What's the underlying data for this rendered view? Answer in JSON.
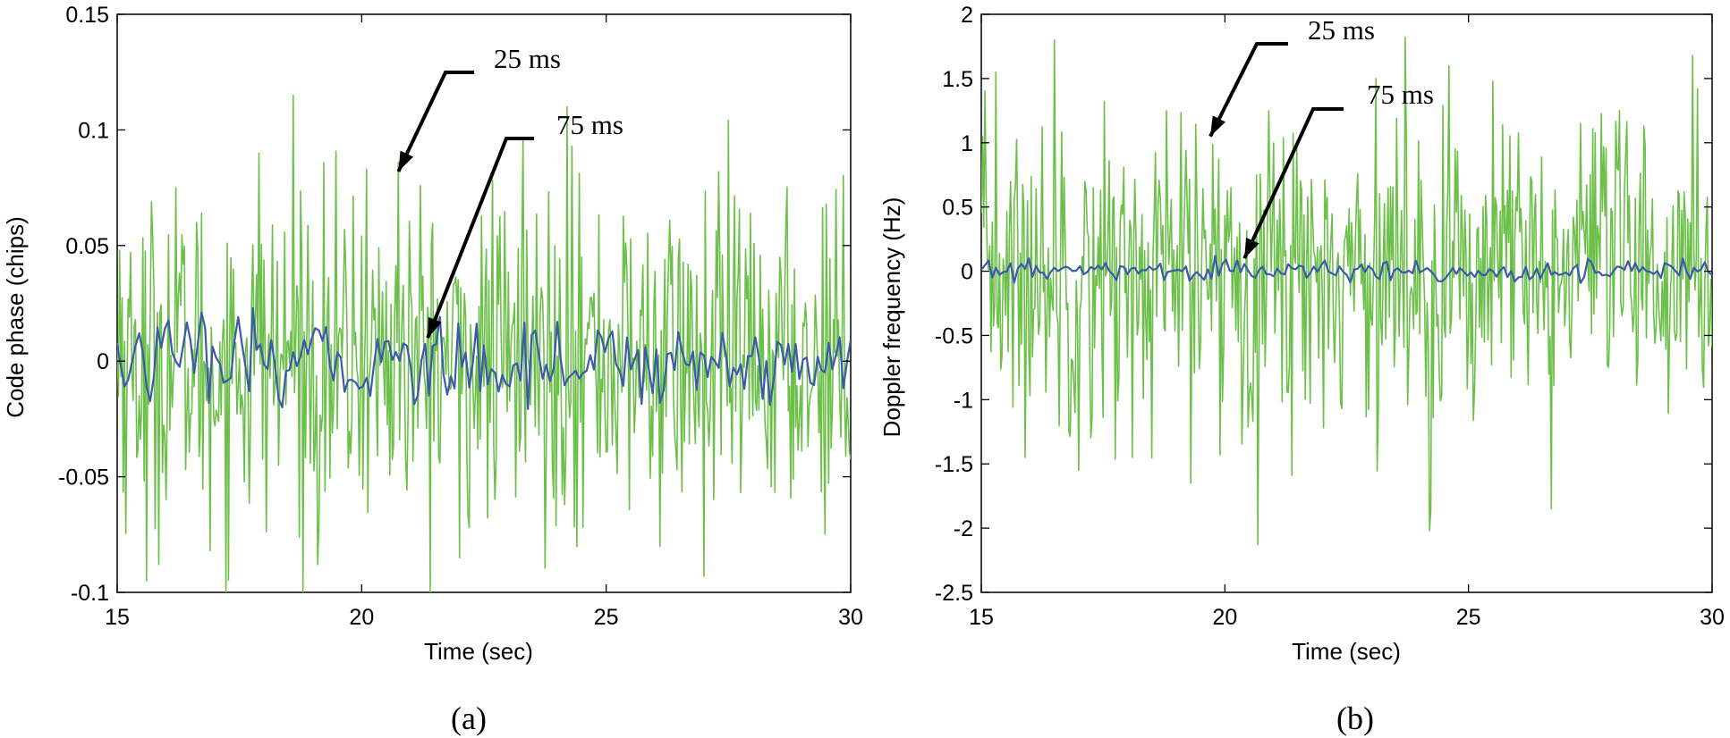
{
  "chart_data": [
    {
      "type": "line",
      "panel_label": "(a)",
      "xlabel": "Time (sec)",
      "ylabel": "Code phase (chips)",
      "xlim": [
        15,
        30
      ],
      "ylim": [
        -0.1,
        0.15
      ],
      "xticks": [
        "15",
        "20",
        "25",
        "30"
      ],
      "xtick_values": [
        15,
        20,
        25,
        30
      ],
      "yticks": [
        "-0.1",
        "-0.05",
        "0",
        "0.05",
        "0.1",
        "0.15"
      ],
      "ytick_values": [
        -0.1,
        -0.05,
        0,
        0.05,
        0.1,
        0.15
      ],
      "series": [
        {
          "name": "25 ms",
          "color": "#6cc04a",
          "dt": 0.025,
          "amplitude": 0.035,
          "peaks": [
            [
              15.05,
              0.048
            ],
            [
              15.6,
              -0.095
            ],
            [
              16.2,
              0.075
            ],
            [
              16.9,
              -0.082
            ],
            [
              17.9,
              0.09
            ],
            [
              18.6,
              0.115
            ],
            [
              19.1,
              -0.088
            ],
            [
              20.1,
              0.083
            ],
            [
              20.75,
              0.086
            ],
            [
              22.0,
              -0.085
            ],
            [
              23.3,
              0.096
            ],
            [
              24.2,
              0.11
            ],
            [
              24.3,
              0.093
            ],
            [
              27.0,
              -0.093
            ],
            [
              27.3,
              0.082
            ],
            [
              29.5,
              0.068
            ]
          ]
        },
        {
          "name": "75 ms",
          "color": "#3c5aa8",
          "dt": 0.075,
          "amplitude": 0.009,
          "peaks": [
            [
              16.0,
              0.014
            ],
            [
              18.4,
              -0.02
            ],
            [
              21.4,
              -0.015
            ],
            [
              24.0,
              0.017
            ],
            [
              26.1,
              -0.018
            ]
          ]
        }
      ],
      "annotations": [
        {
          "text": "25 ms",
          "target": [
            20.75,
            0.082
          ]
        },
        {
          "text": "75 ms",
          "target": [
            21.35,
            0.01
          ]
        }
      ]
    },
    {
      "type": "line",
      "panel_label": "(b)",
      "xlabel": "Time (sec)",
      "ylabel": "Doppler frequency (Hz)",
      "xlim": [
        15,
        30
      ],
      "ylim": [
        -2.5,
        2
      ],
      "xticks": [
        "15",
        "20",
        "25",
        "30"
      ],
      "xtick_values": [
        15,
        20,
        25,
        30
      ],
      "yticks": [
        "-2.5",
        "-2",
        "-1.5",
        "-1",
        "-0.5",
        "0",
        "0.5",
        "1",
        "1.5",
        "2"
      ],
      "ytick_values": [
        -2.5,
        -2,
        -1.5,
        -1,
        -0.5,
        0,
        0.5,
        1,
        1.5,
        2
      ],
      "series": [
        {
          "name": "25 ms",
          "color": "#6cc04a",
          "dt": 0.025,
          "amplitude": 0.6,
          "peaks": [
            [
              15.3,
              1.55
            ],
            [
              15.9,
              -1.45
            ],
            [
              16.5,
              1.8
            ],
            [
              17.0,
              -1.55
            ],
            [
              18.1,
              -1.45
            ],
            [
              19.3,
              -1.65
            ],
            [
              20.9,
              1.25
            ],
            [
              23.1,
              1.5
            ],
            [
              24.2,
              -2.02
            ],
            [
              24.6,
              1.6
            ],
            [
              26.7,
              -1.85
            ],
            [
              27.3,
              1.15
            ],
            [
              29.6,
              1.68
            ]
          ]
        },
        {
          "name": "75 ms",
          "color": "#3c5aa8",
          "dt": 0.075,
          "amplitude": 0.04,
          "peaks": [
            [
              16.0,
              0.1
            ],
            [
              19.8,
              0.12
            ],
            [
              23.4,
              -0.07
            ],
            [
              29.4,
              0.1
            ]
          ]
        }
      ],
      "annotations": [
        {
          "text": "25 ms",
          "target": [
            19.7,
            1.05
          ]
        },
        {
          "text": "75 ms",
          "target": [
            20.4,
            0.1
          ]
        }
      ]
    }
  ]
}
